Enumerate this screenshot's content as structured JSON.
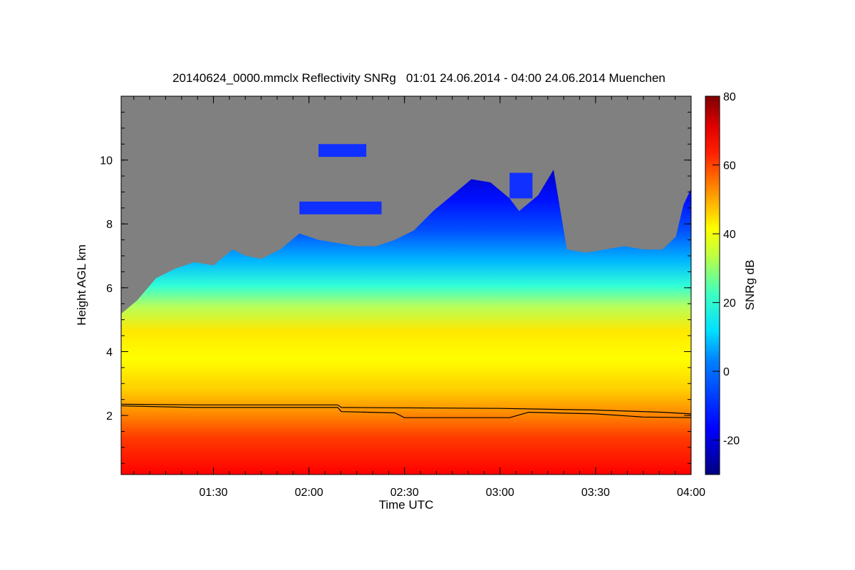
{
  "chart_data": {
    "type": "heatmap",
    "title": "20140624_0000.mmclx Reflectivity SNRg   01:01 24.06.2014 - 04:00 24.06.2014 Muenchen",
    "xlabel": "Time UTC",
    "ylabel": "Height AGL km",
    "x_range_hours": [
      1.017,
      4.0
    ],
    "x_ticks": [
      {
        "value": 1.5,
        "label": "01:30"
      },
      {
        "value": 2.0,
        "label": "02:00"
      },
      {
        "value": 2.5,
        "label": "02:30"
      },
      {
        "value": 3.0,
        "label": "03:00"
      },
      {
        "value": 3.5,
        "label": "03:30"
      },
      {
        "value": 4.0,
        "label": "04:00"
      }
    ],
    "y_range_km": [
      0.15,
      12.0
    ],
    "y_ticks": [
      {
        "value": 2,
        "label": "2"
      },
      {
        "value": 4,
        "label": "4"
      },
      {
        "value": 6,
        "label": "6"
      },
      {
        "value": 8,
        "label": "8"
      },
      {
        "value": 10,
        "label": "10"
      }
    ],
    "colorbar": {
      "label": "SNRg dB",
      "range": [
        -30,
        80
      ],
      "ticks": [
        {
          "value": -20,
          "label": "-20"
        },
        {
          "value": 0,
          "label": "0"
        },
        {
          "value": 20,
          "label": "20"
        },
        {
          "value": 40,
          "label": "40"
        },
        {
          "value": 60,
          "label": "60"
        },
        {
          "value": 80,
          "label": "80"
        }
      ],
      "colors": [
        "#00007f",
        "#0000ff",
        "#00c8ff",
        "#40ffbf",
        "#ffff00",
        "#ff9000",
        "#ff0000",
        "#7f0000"
      ]
    },
    "no_data_color": "#808080",
    "echo_top_km": [
      [
        1.02,
        5.2
      ],
      [
        1.1,
        5.6
      ],
      [
        1.2,
        6.3
      ],
      [
        1.3,
        6.6
      ],
      [
        1.4,
        6.8
      ],
      [
        1.5,
        6.7
      ],
      [
        1.6,
        7.2
      ],
      [
        1.67,
        7.0
      ],
      [
        1.75,
        6.9
      ],
      [
        1.85,
        7.2
      ],
      [
        1.95,
        7.7
      ],
      [
        2.05,
        7.5
      ],
      [
        2.15,
        7.4
      ],
      [
        2.25,
        7.3
      ],
      [
        2.35,
        7.3
      ],
      [
        2.45,
        7.5
      ],
      [
        2.55,
        7.8
      ],
      [
        2.65,
        8.4
      ],
      [
        2.75,
        8.9
      ],
      [
        2.85,
        9.4
      ],
      [
        2.95,
        9.3
      ],
      [
        3.05,
        8.8
      ],
      [
        3.1,
        8.4
      ],
      [
        3.2,
        8.9
      ],
      [
        3.28,
        9.7
      ],
      [
        3.35,
        7.2
      ],
      [
        3.45,
        7.1
      ],
      [
        3.55,
        7.2
      ],
      [
        3.65,
        7.3
      ],
      [
        3.75,
        7.2
      ],
      [
        3.85,
        7.2
      ],
      [
        3.92,
        7.6
      ],
      [
        3.96,
        8.6
      ],
      [
        4.0,
        9.1
      ]
    ],
    "echo_patches_km": [
      {
        "t": [
          2.05,
          2.3
        ],
        "h": [
          10.1,
          10.5
        ]
      },
      {
        "t": [
          1.95,
          2.38
        ],
        "h": [
          8.3,
          8.7
        ]
      },
      {
        "t": [
          3.05,
          3.17
        ],
        "h": [
          8.8,
          9.6
        ]
      }
    ],
    "boundary_line_1_km": [
      [
        1.02,
        2.35
      ],
      [
        1.45,
        2.33
      ],
      [
        2.15,
        2.33
      ],
      [
        2.17,
        2.25
      ],
      [
        3.0,
        2.22
      ],
      [
        3.5,
        2.17
      ],
      [
        3.85,
        2.1
      ],
      [
        4.0,
        2.05
      ]
    ],
    "boundary_line_2_km": [
      [
        1.02,
        2.3
      ],
      [
        1.4,
        2.25
      ],
      [
        2.15,
        2.25
      ],
      [
        2.17,
        2.12
      ],
      [
        2.45,
        2.08
      ],
      [
        2.5,
        1.93
      ],
      [
        3.05,
        1.93
      ],
      [
        3.15,
        2.1
      ],
      [
        3.5,
        2.05
      ],
      [
        3.75,
        1.95
      ],
      [
        4.0,
        1.93
      ]
    ]
  }
}
